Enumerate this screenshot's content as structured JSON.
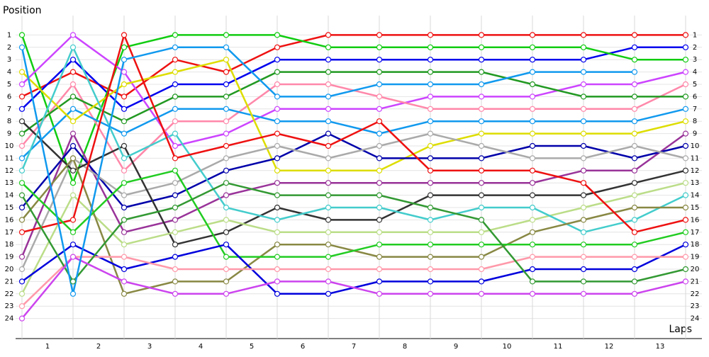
{
  "chart_data": {
    "type": "line",
    "y_label": "Position",
    "x_label": "Laps",
    "x": [
      0,
      1,
      2,
      3,
      4,
      5,
      6,
      7,
      8,
      9,
      10,
      11,
      12,
      13
    ],
    "xlim": [
      0,
      13
    ],
    "xticks": [
      {
        "value": 0.5,
        "label": "1"
      },
      {
        "value": 1.5,
        "label": "2"
      },
      {
        "value": 2.5,
        "label": "3"
      },
      {
        "value": 3.5,
        "label": "4"
      },
      {
        "value": 4.5,
        "label": "5"
      },
      {
        "value": 5.5,
        "label": "6"
      },
      {
        "value": 6.5,
        "label": "7"
      },
      {
        "value": 7.5,
        "label": "8"
      },
      {
        "value": 8.5,
        "label": "9"
      },
      {
        "value": 9.5,
        "label": "10"
      },
      {
        "value": 10.5,
        "label": "11"
      },
      {
        "value": 11.5,
        "label": "12"
      },
      {
        "value": 12.5,
        "label": "13"
      }
    ],
    "ylim": [
      0,
      25
    ],
    "y_inverted": true,
    "yticks": [
      1,
      2,
      3,
      4,
      5,
      6,
      7,
      8,
      9,
      10,
      11,
      12,
      13,
      14,
      15,
      16,
      17,
      18,
      19,
      20,
      21,
      22,
      23,
      24
    ],
    "grid": true,
    "marker_fill": "#ffffff",
    "series": [
      {
        "color": "#ee1111",
        "values": [
          6,
          4,
          6,
          3,
          4,
          2,
          1,
          1,
          1,
          1,
          1,
          1,
          1,
          1
        ]
      },
      {
        "color": "#0000ee",
        "values": [
          7,
          3,
          7,
          5,
          5,
          3,
          3,
          3,
          3,
          3,
          3,
          3,
          2,
          2
        ]
      },
      {
        "color": "#11cc11",
        "values": [
          1,
          13,
          2,
          1,
          1,
          1,
          2,
          2,
          2,
          2,
          2,
          2,
          3,
          3
        ]
      },
      {
        "color": "#cc44ff",
        "values": [
          5,
          1,
          4,
          10,
          9,
          7,
          7,
          7,
          6,
          6,
          6,
          5,
          5,
          4
        ]
      },
      {
        "color": "#ff88aa",
        "values": [
          10,
          5,
          12,
          8,
          8,
          5,
          5,
          6,
          7,
          7,
          7,
          7,
          7,
          5
        ]
      },
      {
        "color": "#229922",
        "values": [
          9,
          6,
          8,
          6,
          6,
          4,
          4,
          4,
          4,
          4,
          5,
          6,
          6,
          6
        ]
      },
      {
        "color": "#1199ee",
        "values": [
          11,
          7,
          9,
          7,
          7,
          8,
          8,
          9,
          8,
          8,
          8,
          8,
          8,
          7
        ]
      },
      {
        "color": "#dddd00",
        "values": [
          4,
          8,
          5,
          4,
          3,
          12,
          12,
          12,
          10,
          9,
          9,
          9,
          9,
          8
        ]
      },
      {
        "color": "#993399",
        "values": [
          19,
          9,
          17,
          16,
          14,
          13,
          13,
          13,
          13,
          13,
          13,
          12,
          12,
          9
        ]
      },
      {
        "color": "#0000aa",
        "values": [
          15,
          10,
          15,
          14,
          12,
          11,
          9,
          11,
          11,
          11,
          10,
          10,
          11,
          10
        ]
      },
      {
        "color": "#aaaaaa",
        "values": [
          20,
          11,
          14,
          13,
          11,
          10,
          11,
          10,
          9,
          10,
          11,
          11,
          10,
          11
        ]
      },
      {
        "color": "#333333",
        "values": [
          8,
          12,
          10,
          18,
          17,
          15,
          16,
          16,
          14,
          14,
          14,
          14,
          13,
          12
        ]
      },
      {
        "color": "#bbdd88",
        "values": [
          22,
          14,
          18,
          17,
          16,
          17,
          17,
          17,
          17,
          17,
          16,
          15,
          14,
          13
        ]
      },
      {
        "color": "#44cccc",
        "values": [
          12,
          2,
          11,
          9,
          15,
          16,
          15,
          15,
          16,
          15,
          15,
          17,
          16,
          14
        ]
      },
      {
        "color": "#888844",
        "values": [
          16,
          11,
          22,
          21,
          21,
          18,
          18,
          19,
          19,
          19,
          17,
          16,
          15,
          15
        ]
      },
      {
        "color": "#ee1111",
        "values": [
          17,
          16,
          1,
          11,
          10,
          9,
          10,
          8,
          12,
          12,
          12,
          13,
          17,
          16
        ]
      },
      {
        "color": "#22cc22",
        "values": [
          13,
          17,
          13,
          12,
          19,
          19,
          19,
          18,
          18,
          18,
          18,
          18,
          18,
          17
        ]
      },
      {
        "color": "#0000dd",
        "values": [
          21,
          18,
          20,
          19,
          18,
          22,
          22,
          21,
          21,
          21,
          20,
          20,
          20,
          18
        ]
      },
      {
        "color": "#ff99aa",
        "values": [
          23,
          19,
          19,
          20,
          20,
          20,
          20,
          20,
          20,
          20,
          19,
          19,
          19,
          19
        ]
      },
      {
        "color": "#339933",
        "values": [
          14,
          21,
          16,
          15,
          13,
          14,
          14,
          14,
          15,
          16,
          21,
          21,
          21,
          20
        ]
      },
      {
        "color": "#cc44ee",
        "values": [
          24,
          19,
          21,
          22,
          22,
          21,
          21,
          22,
          22,
          22,
          22,
          22,
          22,
          21
        ]
      },
      {
        "color": "#1199ee",
        "values": [
          2,
          22,
          3,
          2,
          2,
          6,
          6,
          5,
          5,
          5,
          4,
          4,
          4,
          null
        ]
      }
    ]
  }
}
